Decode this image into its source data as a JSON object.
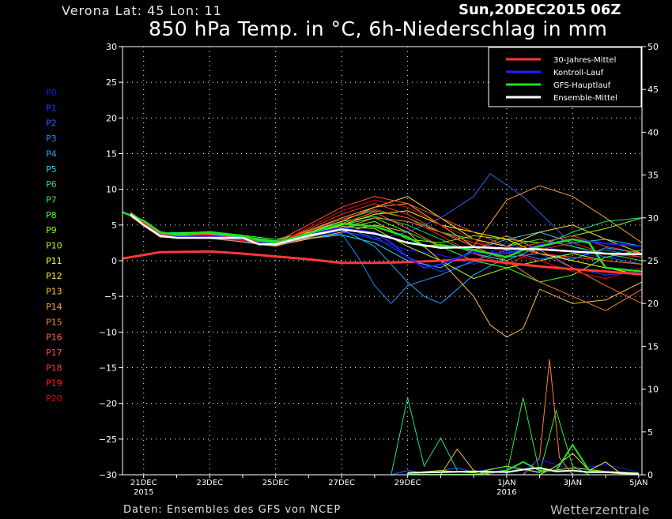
{
  "header": {
    "location": "Verona   Lat: 45 Lon: 11",
    "run": "Sun,20DEC2015 06Z",
    "title": "850 hPa Temp. in °C, 6h-Niederschlag in mm"
  },
  "footer": {
    "source": "Daten: Ensembles des GFS von NCEP",
    "brand": "Wetterzentrale"
  },
  "members": {
    "labels": [
      "P0",
      "P1",
      "P2",
      "P3",
      "P4",
      "P5",
      "P6",
      "P7",
      "P8",
      "P9",
      "P10",
      "P11",
      "P12",
      "P13",
      "P14",
      "P15",
      "P16",
      "P17",
      "P18",
      "P19",
      "P20"
    ],
    "colors": [
      "#1a1aff",
      "#1e3cff",
      "#1e64ff",
      "#1e8cff",
      "#20aaff",
      "#20d0ff",
      "#20e080",
      "#20f040",
      "#40ff20",
      "#80ff10",
      "#b0ff10",
      "#ffff00",
      "#ffe040",
      "#ffc040",
      "#ffa030",
      "#ff8030",
      "#ff6a30",
      "#ff5030",
      "#ff3a30",
      "#ff2020",
      "#e80000"
    ]
  },
  "chart_data": {
    "type": "line",
    "x_tick_labels": [
      {
        "day": 1,
        "label": "21DEC",
        "sub": "2015"
      },
      {
        "day": 3,
        "label": "23DEC",
        "sub": ""
      },
      {
        "day": 5,
        "label": "25DEC",
        "sub": ""
      },
      {
        "day": 7,
        "label": "27DEC",
        "sub": ""
      },
      {
        "day": 9,
        "label": "29DEC",
        "sub": ""
      },
      {
        "day": 12,
        "label": "1JAN",
        "sub": "2016"
      },
      {
        "day": 14,
        "label": "3JAN",
        "sub": ""
      },
      {
        "day": 16,
        "label": "5JAN",
        "sub": ""
      }
    ],
    "xlim": [
      0.36,
      16.1
    ],
    "ylim_left": [
      -30,
      30
    ],
    "ylim_right": [
      0,
      50
    ],
    "y_ticks_left": [
      30,
      25,
      20,
      15,
      10,
      5,
      0,
      -5,
      -10,
      -15,
      -20,
      -25,
      -30
    ],
    "y_ticks_right": [
      50,
      45,
      40,
      35,
      30,
      25,
      20,
      15,
      10,
      5,
      0
    ],
    "grid": true,
    "legend": {
      "position": "top-right",
      "entries": [
        {
          "name": "30-Jahres-Mittel",
          "color": "#ff3838"
        },
        {
          "name": "Kontroll-Lauf",
          "color": "#2020ff"
        },
        {
          "name": "GFS-Hauptlauf",
          "color": "#20e020"
        },
        {
          "name": "Ensemble-Mittel",
          "color": "#ffffff"
        }
      ]
    },
    "climate_mean": {
      "x": [
        0.36,
        1.5,
        3,
        4,
        5,
        6,
        7,
        8,
        9,
        10,
        11,
        12,
        13,
        14,
        15,
        16.1
      ],
      "y": [
        0.3,
        1.2,
        1.3,
        1.0,
        0.6,
        0.2,
        -0.3,
        -0.3,
        -0.2,
        0.0,
        0.2,
        -0.3,
        -0.8,
        -1.2,
        -1.5,
        -1.9
      ]
    },
    "ensemble_mean": {
      "x": [
        0.6,
        1,
        1.5,
        2,
        3,
        4,
        4.5,
        5,
        6,
        7,
        8,
        8.5,
        9,
        10,
        11,
        12,
        13,
        14,
        15,
        16.1
      ],
      "y": [
        6.5,
        5.0,
        3.5,
        3.2,
        3.2,
        3.2,
        2.3,
        2.3,
        3.5,
        4.4,
        3.8,
        3.2,
        2.5,
        1.8,
        1.9,
        1.7,
        1.6,
        1.3,
        1.0,
        0.9
      ]
    },
    "ensemble_mean_precip": {
      "x": [
        9,
        10,
        11,
        12,
        12.5,
        13,
        13.5,
        14,
        14.5,
        15,
        16
      ],
      "y": [
        0.2,
        0.3,
        0.4,
        0.3,
        0.6,
        0.8,
        0.4,
        0.5,
        0.3,
        0.3,
        0.1
      ]
    },
    "control_run": {
      "x": [
        0.6,
        1,
        1.5,
        2,
        3,
        4,
        4.5,
        5,
        6,
        7,
        8,
        8.5,
        9,
        9.5,
        10,
        11,
        12,
        13,
        14,
        15,
        16.1
      ],
      "y": [
        6.5,
        5.0,
        3.6,
        3.3,
        3.5,
        3.0,
        2.5,
        2.3,
        3.8,
        4.6,
        4.0,
        2.5,
        0.5,
        -1.0,
        -0.5,
        1.2,
        1.0,
        2.2,
        3.0,
        2.4,
        2.0
      ]
    },
    "gfs_main_run": {
      "x": [
        0.36,
        1,
        1.5,
        2,
        3,
        4,
        4.5,
        5,
        6,
        7,
        8,
        9,
        9.5,
        10,
        11,
        12,
        12.5,
        13,
        14,
        14.5,
        15,
        16.1
      ],
      "y": [
        6.8,
        5.6,
        4.0,
        3.6,
        4.0,
        3.5,
        2.8,
        2.5,
        3.8,
        5.2,
        4.8,
        3.3,
        2.0,
        2.2,
        1.5,
        0.5,
        1.5,
        2.0,
        3.0,
        2.5,
        -1.0,
        -1.5
      ]
    },
    "gfs_main_precip": {
      "x": [
        9,
        11,
        12,
        12.5,
        13,
        13.5,
        14,
        14.5,
        15,
        16
      ],
      "y": [
        0,
        0,
        0.5,
        1.5,
        0.5,
        0.5,
        3.5,
        0.5,
        0.3,
        0
      ]
    },
    "members_temp": [
      {
        "x": [
          0.6,
          1.5,
          3,
          5,
          7,
          8,
          9,
          10,
          11,
          12,
          13,
          14,
          15,
          16.1
        ],
        "y": [
          6.5,
          3.6,
          3.4,
          2.4,
          4.2,
          3.0,
          1.5,
          0.8,
          -0.5,
          1.2,
          2.0,
          1.2,
          0.4,
          1.0
        ]
      },
      {
        "x": [
          0.6,
          1.5,
          3,
          5,
          7,
          8,
          9,
          10,
          11,
          12,
          13,
          14,
          15,
          16.1
        ],
        "y": [
          6.4,
          3.4,
          3.2,
          2.1,
          4.0,
          3.4,
          0.5,
          -1.5,
          -0.2,
          2.5,
          1.0,
          -1.0,
          -2.0,
          -1.5
        ]
      },
      {
        "x": [
          0.6,
          1.5,
          3,
          5,
          7,
          8,
          9,
          10,
          11,
          11.5,
          12.5,
          13.5,
          14,
          15,
          16.1
        ],
        "y": [
          6.6,
          3.7,
          3.3,
          2.0,
          5.0,
          3.0,
          4.0,
          6.0,
          9.0,
          12.2,
          9.0,
          4.5,
          2.0,
          0.5,
          -0.5
        ]
      },
      {
        "x": [
          0.6,
          1.5,
          3,
          5,
          7,
          7.5,
          8,
          8.5,
          9,
          10,
          11,
          12,
          13,
          14,
          15,
          16.1
        ],
        "y": [
          6.5,
          3.5,
          3.6,
          2.5,
          3.8,
          0.5,
          -3.5,
          -6.0,
          -3.5,
          -2.0,
          0.0,
          1.5,
          0.2,
          1.0,
          1.5,
          0.5
        ]
      },
      {
        "x": [
          0.6,
          1.5,
          3,
          5,
          7,
          8,
          9,
          9.5,
          10,
          11,
          12,
          13,
          14,
          15,
          16.1
        ],
        "y": [
          6.4,
          3.3,
          3.1,
          2.2,
          4.4,
          2.0,
          -3.0,
          -5.0,
          -6.0,
          -2.0,
          0.5,
          1.0,
          0.2,
          1.8,
          1.0
        ]
      },
      {
        "x": [
          0.6,
          1.5,
          3,
          5,
          7,
          8,
          9,
          10,
          11,
          12,
          13,
          14,
          15,
          16.1
        ],
        "y": [
          6.3,
          3.5,
          3.8,
          2.6,
          3.6,
          2.5,
          0.0,
          -1.0,
          1.5,
          3.0,
          4.0,
          2.5,
          3.0,
          2.0
        ]
      },
      {
        "x": [
          0.6,
          1.5,
          3,
          5,
          7,
          8,
          9,
          10,
          11,
          12,
          13,
          14,
          15,
          16.1
        ],
        "y": [
          6.8,
          3.9,
          4.0,
          2.8,
          5.5,
          6.2,
          5.0,
          3.0,
          1.0,
          0.0,
          2.0,
          4.0,
          5.5,
          6.0
        ]
      },
      {
        "x": [
          0.6,
          1.5,
          3,
          5,
          7,
          8,
          9,
          10,
          11,
          12,
          13,
          14,
          15,
          16.1
        ],
        "y": [
          6.7,
          3.8,
          3.9,
          2.7,
          5.8,
          7.0,
          6.0,
          4.0,
          3.0,
          2.0,
          3.0,
          2.0,
          1.0,
          0.0
        ]
      },
      {
        "x": [
          0.6,
          1.5,
          3,
          5,
          7,
          8,
          9,
          10,
          11,
          12,
          13,
          14,
          15,
          16.1
        ],
        "y": [
          6.6,
          3.7,
          4.1,
          3.0,
          5.0,
          6.0,
          4.0,
          2.0,
          0.0,
          -1.0,
          -3.0,
          -2.0,
          0.5,
          1.5
        ]
      },
      {
        "x": [
          0.6,
          1.5,
          3,
          5,
          7,
          8,
          9,
          10,
          11,
          12,
          13,
          14,
          15,
          16.1
        ],
        "y": [
          6.5,
          3.6,
          3.7,
          2.4,
          4.5,
          5.5,
          3.0,
          2.5,
          3.5,
          3.0,
          2.5,
          3.5,
          4.5,
          6.0
        ]
      },
      {
        "x": [
          0.6,
          1.5,
          3,
          5,
          7,
          8,
          9,
          10,
          11,
          12,
          13,
          14,
          15,
          16.1
        ],
        "y": [
          6.6,
          3.7,
          3.5,
          2.3,
          4.8,
          4.5,
          2.0,
          0.0,
          -2.5,
          -1.0,
          0.0,
          1.0,
          0.0,
          -0.5
        ]
      },
      {
        "x": [
          0.6,
          1.5,
          3,
          5,
          7,
          8,
          9,
          10,
          11,
          12,
          13,
          14,
          15,
          16.1
        ],
        "y": [
          6.4,
          3.5,
          3.4,
          2.2,
          5.0,
          6.5,
          7.0,
          5.0,
          4.0,
          3.0,
          1.0,
          0.0,
          -1.0,
          -2.0
        ]
      },
      {
        "x": [
          0.6,
          1.5,
          3,
          5,
          7,
          8,
          9,
          10,
          11,
          12,
          13,
          14,
          15,
          16.1
        ],
        "y": [
          6.5,
          3.6,
          3.3,
          2.4,
          5.5,
          7.5,
          9.0,
          6.0,
          3.0,
          2.0,
          4.0,
          5.0,
          3.0,
          1.0
        ]
      },
      {
        "x": [
          0.6,
          1.5,
          3,
          5,
          7,
          8,
          9,
          10,
          11,
          11.5,
          12,
          12.5,
          13,
          14,
          15,
          16.1
        ],
        "y": [
          6.3,
          3.4,
          3.6,
          2.1,
          4.0,
          5.0,
          4.0,
          0.0,
          -5.0,
          -9.0,
          -10.7,
          -9.5,
          -4.0,
          -6.0,
          -5.5,
          -3.0
        ]
      },
      {
        "x": [
          0.6,
          1.5,
          3,
          5,
          7,
          8,
          9,
          10,
          11,
          12,
          13,
          14,
          15,
          16.1
        ],
        "y": [
          6.4,
          3.5,
          3.5,
          2.5,
          6.0,
          7.5,
          8.0,
          5.0,
          2.0,
          8.5,
          10.5,
          9.0,
          6.0,
          2.5
        ]
      },
      {
        "x": [
          0.6,
          1.5,
          3,
          5,
          7,
          8,
          9,
          10,
          11,
          12,
          13,
          14,
          15,
          16.1
        ],
        "y": [
          6.2,
          3.3,
          3.2,
          2.0,
          4.5,
          6.0,
          5.5,
          4.0,
          2.0,
          0.0,
          -3.0,
          -5.0,
          -7.0,
          -4.0
        ]
      },
      {
        "x": [
          0.6,
          1.5,
          3,
          5,
          7,
          8,
          9,
          10,
          11,
          12,
          13,
          14,
          15,
          16.1
        ],
        "y": [
          6.5,
          3.6,
          3.4,
          2.3,
          5.2,
          6.8,
          4.5,
          2.0,
          1.5,
          3.5,
          1.5,
          -1.0,
          -3.5,
          -6.0
        ]
      },
      {
        "x": [
          0.6,
          1.5,
          3,
          5,
          7,
          8,
          9,
          10,
          11,
          12,
          13,
          14,
          15,
          16.1
        ],
        "y": [
          6.7,
          3.8,
          3.7,
          2.6,
          7.5,
          9.0,
          8.0,
          6.0,
          4.0,
          2.0,
          1.0,
          0.5,
          0.0,
          -0.5
        ]
      },
      {
        "x": [
          0.6,
          1.5,
          3,
          5,
          7,
          8,
          9,
          10,
          11,
          12,
          13,
          14,
          15,
          16.1
        ],
        "y": [
          6.6,
          3.7,
          3.5,
          2.4,
          6.5,
          8.0,
          6.5,
          4.0,
          2.5,
          1.5,
          2.5,
          3.5,
          2.0,
          1.0
        ]
      },
      {
        "x": [
          0.6,
          1.5,
          3,
          5,
          7,
          8,
          9,
          10,
          11,
          12,
          13,
          14,
          15,
          16.1
        ],
        "y": [
          6.5,
          3.6,
          3.6,
          2.5,
          5.8,
          7.2,
          6.0,
          3.5,
          1.0,
          -0.5,
          1.5,
          2.5,
          1.0,
          0.5
        ]
      },
      {
        "x": [
          0.6,
          1.5,
          3,
          5,
          7,
          8,
          9,
          10,
          11,
          12,
          13,
          14,
          15,
          16.1
        ],
        "y": [
          6.4,
          3.5,
          3.3,
          2.3,
          7.0,
          8.5,
          7.5,
          5.0,
          3.0,
          1.0,
          0.0,
          -1.5,
          -2.5,
          -1.0
        ]
      }
    ],
    "members_precip": [
      {
        "x": [
          8.5,
          9,
          9.5,
          10,
          10.5
        ],
        "y": [
          0,
          9.0,
          1.0,
          4.3,
          0.5
        ],
        "member": 6
      },
      {
        "x": [
          12,
          12.5,
          13,
          13.5,
          14,
          14.5
        ],
        "y": [
          0,
          9.0,
          0.2,
          7.5,
          1.0,
          0
        ],
        "member": 7
      },
      {
        "x": [
          12.5,
          13,
          13.3,
          13.6,
          14
        ],
        "y": [
          0,
          2.0,
          13.5,
          2.0,
          0
        ],
        "member": 15
      },
      {
        "x": [
          10,
          10.5,
          11,
          11.5
        ],
        "y": [
          0,
          3.0,
          0.5,
          0
        ],
        "member": 13
      },
      {
        "x": [
          8.5,
          9,
          9.5,
          10.5,
          11,
          12,
          13
        ],
        "y": [
          0,
          0.5,
          0.2,
          0.8,
          0.3,
          1.0,
          0.2
        ],
        "member": 2
      },
      {
        "x": [
          11.5,
          12,
          12.5,
          13,
          14,
          15,
          16
        ],
        "y": [
          0,
          0.8,
          0.5,
          1.8,
          0.6,
          1.2,
          0.3
        ],
        "member": 0
      },
      {
        "x": [
          9,
          10,
          11,
          12,
          13,
          14,
          15,
          16
        ],
        "y": [
          0.2,
          0.5,
          0.2,
          1.0,
          0.3,
          0.8,
          0.4,
          0.2
        ],
        "member": 10
      },
      {
        "x": [
          13,
          13.5,
          14,
          14.5,
          15,
          15.5
        ],
        "y": [
          0,
          1.0,
          2.5,
          0.5,
          1.5,
          0
        ],
        "member": 12
      }
    ]
  }
}
